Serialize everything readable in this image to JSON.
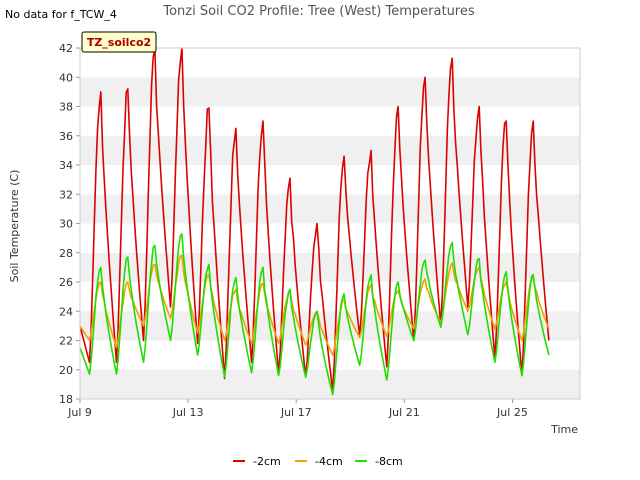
{
  "no_data_note": "No data for f_TCW_4",
  "site_tag": "TZ_soilco2",
  "chart_data": {
    "type": "line",
    "title": "Tonzi Soil CO2 Profile: Tree (West) Temperatures",
    "xlabel": "Time",
    "ylabel": "Soil Temperature (C)",
    "ylim": [
      18,
      42
    ],
    "yticks": [
      18,
      20,
      22,
      24,
      26,
      28,
      30,
      32,
      34,
      36,
      38,
      40,
      42
    ],
    "xlim": [
      0,
      18.5
    ],
    "xticks": [
      {
        "x": 0,
        "label": "Jul 9"
      },
      {
        "x": 4,
        "label": "Jul 13"
      },
      {
        "x": 8,
        "label": "Jul 17"
      },
      {
        "x": 12,
        "label": "Jul 21"
      },
      {
        "x": 16,
        "label": "Jul 25"
      }
    ],
    "grid": "horizontal bands",
    "legend_position": "bottom",
    "daily_min_times": [
      0.35,
      1.35,
      2.35,
      3.35,
      4.35,
      5.35,
      6.35,
      7.35,
      8.35,
      9.35,
      10.35,
      11.35,
      12.35,
      13.35,
      14.35,
      15.35,
      16.35,
      17.35
    ],
    "series": [
      {
        "name": "-2cm",
        "color": "#dd0000",
        "start": 23.0,
        "mins": [
          20.5,
          20.5,
          22.0,
          24.3,
          21.8,
          19.4,
          20.5,
          19.7,
          19.5,
          18.6,
          22.3,
          20.2,
          22.0,
          23.0,
          24.3,
          20.8,
          19.6,
          22.0
        ],
        "maxs": [
          39.0,
          39.2,
          41.9,
          42.0,
          37.9,
          36.5,
          37.0,
          33.1,
          30.0,
          34.6,
          35.0,
          38.0,
          40.0,
          41.3,
          38.0,
          37.0,
          37.0
        ]
      },
      {
        "name": "-4cm",
        "color": "#f0a000",
        "start": 23.0,
        "mins": [
          22.0,
          21.5,
          23.0,
          23.5,
          22.5,
          22.0,
          21.8,
          21.8,
          21.7,
          21.0,
          22.2,
          22.3,
          22.8,
          23.2,
          24.0,
          22.8,
          22.0,
          22.8
        ],
        "maxs": [
          26.0,
          26.0,
          27.2,
          27.8,
          26.5,
          25.5,
          25.9,
          25.4,
          24.0,
          24.8,
          25.8,
          25.4,
          26.2,
          27.3,
          27.0,
          26.0,
          26.3
        ]
      },
      {
        "name": "-8cm",
        "color": "#22dd00",
        "start": 21.5,
        "mins": [
          19.7,
          19.7,
          20.5,
          22.0,
          21.0,
          19.5,
          19.8,
          19.6,
          19.5,
          18.3,
          20.3,
          19.3,
          22.0,
          22.9,
          22.4,
          20.5,
          19.6,
          21.0
        ],
        "maxs": [
          27.0,
          27.7,
          28.5,
          29.3,
          27.2,
          26.3,
          27.0,
          25.5,
          24.0,
          25.2,
          26.5,
          26.0,
          27.5,
          28.7,
          27.6,
          26.7,
          26.5
        ]
      }
    ]
  }
}
